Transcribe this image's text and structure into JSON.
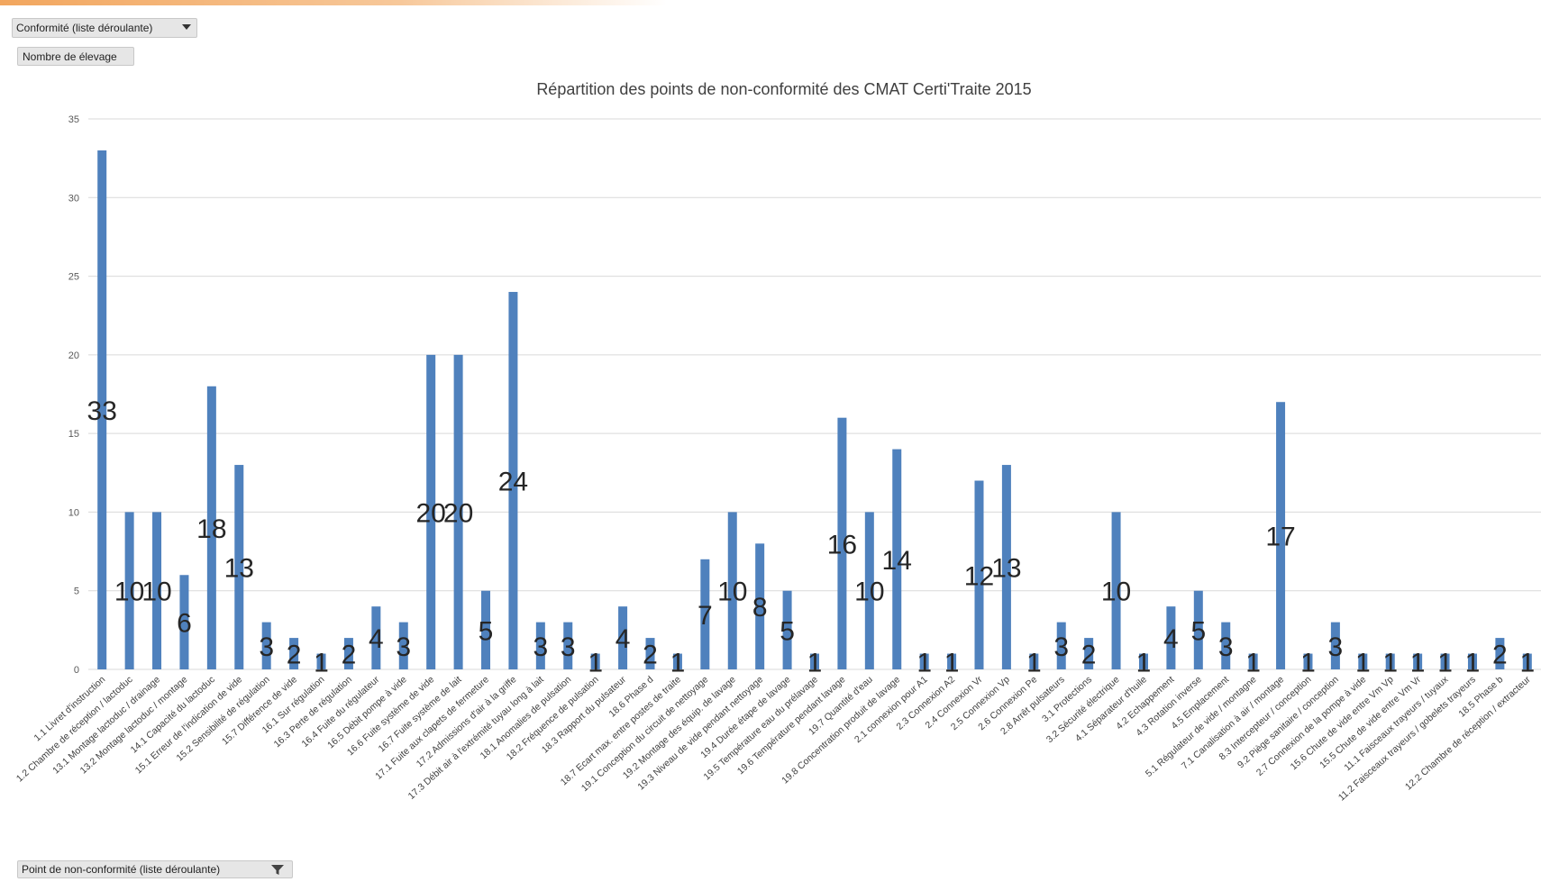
{
  "controls": {
    "report_filter_label": "Conformité (liste déroulante)",
    "values_field_label": "Nombre de élevage",
    "axis_filter_label": "Point de non-conformité (liste déroulante)"
  },
  "colors": {
    "bar": "#4f81bd",
    "gridline": "#d9d9d9",
    "accent_strip": "#f2a65e"
  },
  "chart_data": {
    "type": "bar",
    "title": "Répartition des points de non-conformité des CMAT Certi'Traite 2015",
    "xlabel": "",
    "ylabel": "",
    "ylim": [
      0,
      35
    ],
    "yticks": [
      0,
      5,
      10,
      15,
      20,
      25,
      30,
      35
    ],
    "grid": true,
    "legend": "none",
    "categories": [
      "1.1 Livret d'instruction",
      "1.2 Chambre de réception / lactoduc",
      "13.1 Montage lactoduc / drainage",
      "13.2 Montage lactoduc / montage",
      "14.1 Capacité du lactoduc",
      "15.1 Erreur de l'indication de vide",
      "15.2 Sensibilité de régulation",
      "15.7 Différence de vide",
      "16.1 Sur régulation",
      "16.3 Perte de régulation",
      "16.4 Fuite du régulateur",
      "16.5 Débit pompe à vide",
      "16.6 Fuite système de vide",
      "16.7 Fuite système de lait",
      "17.1 Fuite aux clapets de fermeture",
      "17.2 Admissions d'air à la griffe",
      "17.3 Débit air à l'extrémité tuyau long à lait",
      "18.1 Anomalies de pulsation",
      "18.2 Fréquence de pulsation",
      "18.3 Rapport du pulsateur",
      "18.6 Phase d",
      "18.7 Ecart max. entre postes de traite",
      "19.1 Conception du circuit de nettoyage",
      "19.2 Montage des équip. de lavage",
      "19.3 Niveau de vide pendant nettoyage",
      "19.4 Durée étape de lavage",
      "19.5 Température eau du prélavage",
      "19.6 Température pendant lavage",
      "19.7 Quantité d'eau",
      "19.8 Concentration produit de lavage",
      "2.1 connexion pour A1",
      "2.3 Connexion A2",
      "2.4 Connexion Vr",
      "2.5 Connexion Vp",
      "2.6 Connexion Pe",
      "2.8 Arrêt pulsateurs",
      "3.1 Protections",
      "3.2 Sécurité électrique",
      "4.1 Séparateur d'huile",
      "4.2 Echappement",
      "4.3 Rotation inverse",
      "4.5 Emplacement",
      "5.1 Régulateur de vide / montagne",
      "7.1 Canalisation à air / montage",
      "8.3 Intercepteur / conception",
      "9.2 Piège sanitaire / conception",
      "2.7 Connexion de la pompe à vide",
      "15.6 Chute de vide entre Vm Vp",
      "15.5 Chute de vide entre Vm Vr",
      "11.1 Faisceaux trayeurs / tuyaux",
      "11.2 Faisceaux trayeurs / gobelets trayeurs",
      "18.5 Phase b",
      "12.2 Chambre de réception / extracteur"
    ],
    "series": [
      {
        "values": [
          33,
          10,
          10,
          6,
          18,
          13,
          3,
          2,
          1,
          2,
          4,
          3,
          20,
          20,
          5,
          24,
          3,
          3,
          1,
          4,
          2,
          1,
          7,
          10,
          8,
          5,
          1,
          16,
          10,
          14,
          1,
          1,
          12,
          13,
          1,
          3,
          2,
          10,
          1,
          4,
          5,
          3,
          1,
          17,
          1,
          3,
          1,
          1,
          1,
          1,
          1,
          2,
          1
        ]
      }
    ]
  }
}
